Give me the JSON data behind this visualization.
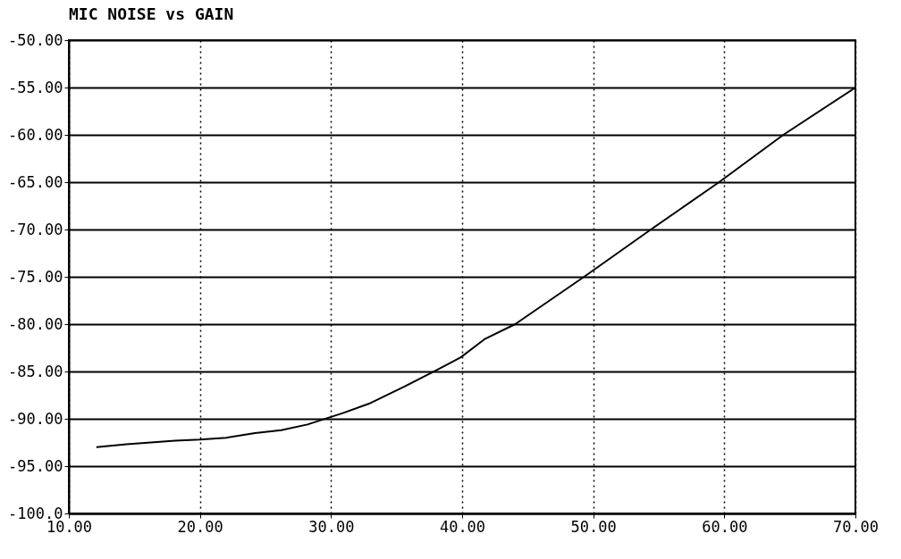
{
  "chart_data": {
    "type": "line",
    "title": "MIC NOISE vs GAIN",
    "x": [
      12.1,
      14.4,
      18.1,
      20,
      22,
      24.2,
      26.2,
      28.2,
      30,
      30.9,
      32.9,
      35.6,
      38,
      39.9,
      41.7,
      44.05,
      49.3,
      54.4,
      59.6,
      64.5,
      70
    ],
    "series": [
      {
        "color": "#000000",
        "values": [
          -93.0,
          -92.7,
          -92.3,
          -92.2,
          -92.0,
          -91.5,
          -91.2,
          -90.6,
          -89.8,
          -89.4,
          -88.4,
          -86.6,
          -84.9,
          -83.5,
          -81.6,
          -80,
          -75,
          -70,
          -65,
          -60,
          -55
        ]
      }
    ],
    "xlim": [
      10,
      70
    ],
    "ylim": [
      -100,
      -50
    ],
    "xticks": [
      {
        "value": 10,
        "label": "10.00"
      },
      {
        "value": 20,
        "label": "20.00"
      },
      {
        "value": 30,
        "label": "30.00"
      },
      {
        "value": 40,
        "label": "40.00"
      },
      {
        "value": 50,
        "label": "50.00"
      },
      {
        "value": 60,
        "label": "60.00"
      },
      {
        "value": 70,
        "label": "70.00"
      }
    ],
    "yticks": [
      {
        "value": -50,
        "label": "-50.00"
      },
      {
        "value": -55,
        "label": "-55.00"
      },
      {
        "value": -60,
        "label": "-60.00"
      },
      {
        "value": -65,
        "label": "-65.00"
      },
      {
        "value": -70,
        "label": "-70.00"
      },
      {
        "value": -75,
        "label": "-75.00"
      },
      {
        "value": -80,
        "label": "-80.00"
      },
      {
        "value": -85,
        "label": "-85.00"
      },
      {
        "value": -90,
        "label": "-90.00"
      },
      {
        "value": -95,
        "label": "-95.00"
      },
      {
        "value": -100,
        "label": "-100.0"
      }
    ],
    "grid": true,
    "marker": "none",
    "line_style": "solid"
  }
}
